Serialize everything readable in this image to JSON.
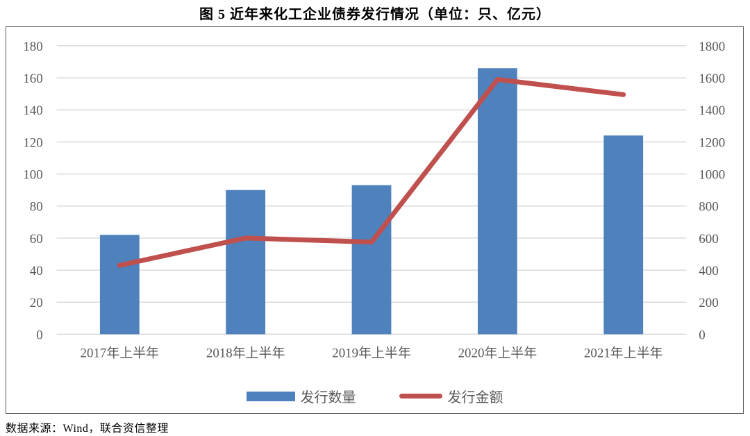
{
  "title": "图 5   近年来化工企业债券发行情况（单位：只、亿元）",
  "source_note": "数据来源：Wind，联合资信整理",
  "legend": {
    "bar_label": "发行数量",
    "line_label": "发行金额"
  },
  "colors": {
    "bar": "#4F81BD",
    "line": "#C0504D",
    "grid": "#D9D9D9",
    "frame": "#595959",
    "tick_text": "#595959"
  },
  "chart_data": {
    "type": "bar",
    "subtype": "bar+line combo, dual axis",
    "title": "图 5 近年来化工企业债券发行情况（单位：只、亿元）",
    "categories": [
      "2017年上半年",
      "2018年上半年",
      "2019年上半年",
      "2020年上半年",
      "2021年上半年"
    ],
    "series": [
      {
        "name": "发行数量",
        "type": "bar",
        "axis": "left",
        "color": "#4F81BD",
        "values": [
          62,
          90,
          93,
          166,
          124
        ]
      },
      {
        "name": "发行金额",
        "type": "line",
        "axis": "right",
        "color": "#C0504D",
        "values": [
          430,
          600,
          575,
          1590,
          1495
        ]
      }
    ],
    "left_axis": {
      "min": 0,
      "max": 180,
      "step": 20,
      "ticks": [
        "180",
        "160",
        "140",
        "120",
        "100",
        "80",
        "60",
        "40",
        "20",
        "0"
      ]
    },
    "right_axis": {
      "min": 0,
      "max": 1800,
      "step": 200,
      "ticks": [
        "1800",
        "1600",
        "1400",
        "1200",
        "1000",
        "800",
        "600",
        "400",
        "200",
        "0"
      ]
    },
    "grid": true,
    "legend_position": "bottom"
  }
}
